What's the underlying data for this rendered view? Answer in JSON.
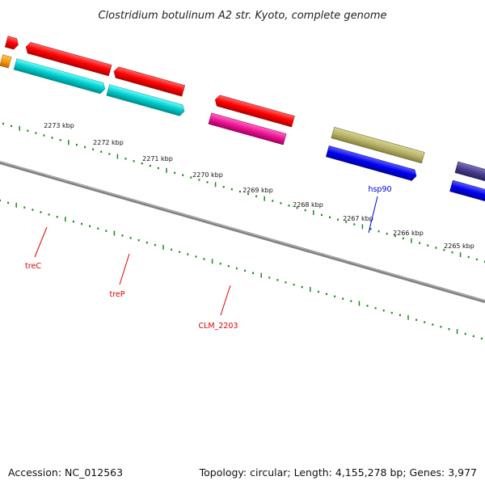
{
  "title": "Clostridium botulinum A2 str. Kyoto, complete genome",
  "footer": {
    "accession": "Accession: NC_012563",
    "summary": "Topology: circular; Length: 4,155,278 bp; Genes: 3,977"
  },
  "scale": {
    "unit": "kbp",
    "ticks": [
      "2273 kbp",
      "2272 kbp",
      "2271 kbp",
      "2270 kbp",
      "2269 kbp",
      "2268 kbp",
      "2267 kbp",
      "2266 kbp",
      "2265 kbp"
    ]
  },
  "genes": [
    {
      "name": "treC",
      "color": "#ff0000",
      "strand": "reverse"
    },
    {
      "name": "treP",
      "color": "#00cccc",
      "strand": "reverse"
    },
    {
      "name": "CLM_2203",
      "color": "#ff0000",
      "strand": "reverse"
    },
    {
      "name": "hsp90",
      "color": "#0000ff",
      "strand": "reverse"
    }
  ],
  "colors": {
    "backbone": "#808080",
    "ticks": "#1a8a1a",
    "label_red": "#dd0000",
    "label_blue": "#0000cc"
  }
}
